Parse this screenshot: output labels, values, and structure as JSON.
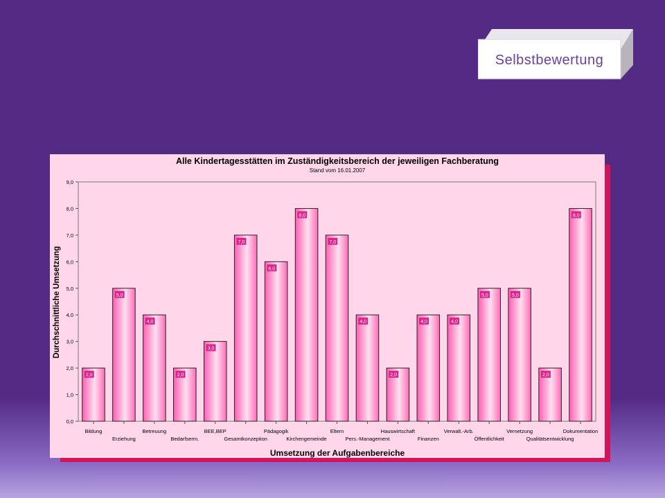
{
  "badge": {
    "label": "Selbstbewertung"
  },
  "chart_data": {
    "type": "bar",
    "title": "Alle Kindertagesstätten im Zuständigkeitsbereich der jeweiligen Fachberatung",
    "subtitle": "Stand vom 16.01.2007",
    "xlabel": "Umsetzung der Aufgabenbereiche",
    "ylabel": "Durchschnittliche Umsetzung",
    "ylim": [
      0,
      9
    ],
    "yticks": [
      "0,0",
      "1,0",
      "2,0",
      "3,0",
      "4,0",
      "5,0",
      "6,0",
      "7,0",
      "8,0",
      "9,0"
    ],
    "categories": [
      "Bildung",
      "Erziehung",
      "Betreuung",
      "Bedarfserm.",
      "BEE,BEP",
      "Gesamtkonzeption",
      "Pädagogik",
      "Kirchengemeinde",
      "Eltern",
      "Pers.-Management",
      "Hauswirtschaft",
      "Finanzen",
      "Verwalt.-Arb.",
      "Öffentlichkeit",
      "Vernetzung",
      "Qualitätsentwicklung",
      "Dokumentation"
    ],
    "values": [
      2,
      5,
      4,
      2,
      3,
      7,
      6,
      8,
      7,
      4,
      2,
      4,
      4,
      5,
      5,
      2,
      8
    ],
    "value_labels": [
      "2,0",
      "5,0",
      "4,0",
      "2,0",
      "3,0",
      "7,0",
      "6,0",
      "8,0",
      "7,0",
      "4,0",
      "2,0",
      "4,0",
      "4,0",
      "5,0",
      "5,0",
      "2,0",
      "8,0"
    ],
    "grid": false,
    "legend": "none",
    "colors": {
      "bar": "#ff7ac0",
      "label_bg": "#e0218a",
      "plot_bg": "#ffd6ea",
      "shadow": "#d4145a"
    }
  }
}
